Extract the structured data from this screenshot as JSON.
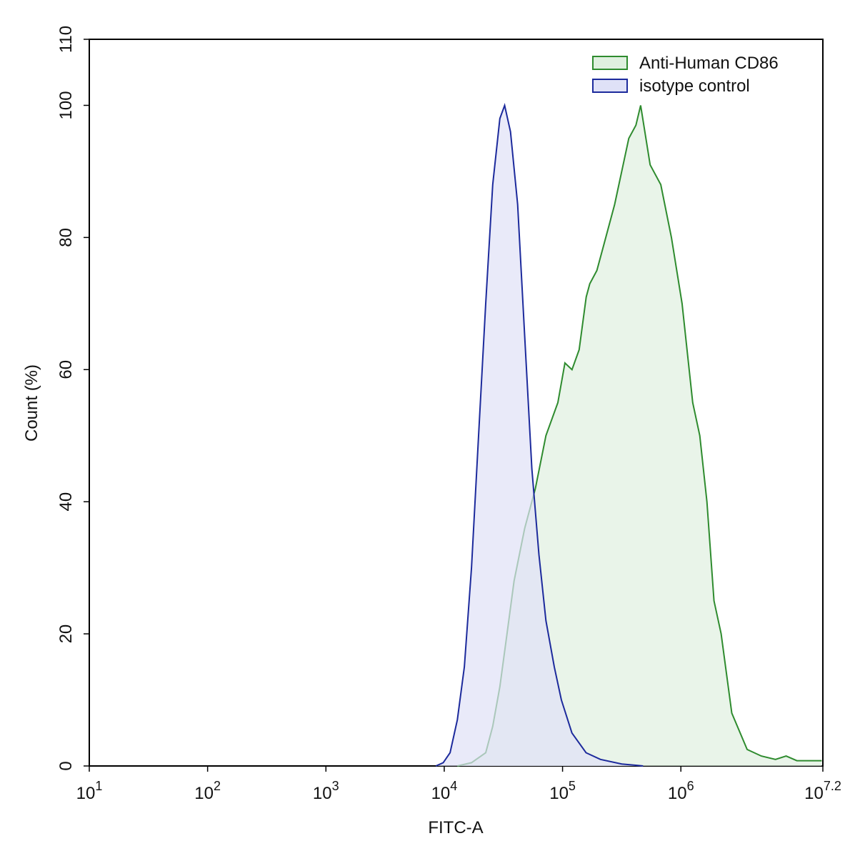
{
  "chart_data": {
    "type": "histogram-overlay",
    "x_label": "FITC-A",
    "y_label": "Count  (%)",
    "xscale": "log",
    "xlim": [
      10,
      15848932
    ],
    "ylim": [
      0,
      110
    ],
    "xticks": [
      {
        "value": 10,
        "label": "10^1"
      },
      {
        "value": 100,
        "label": "10^2"
      },
      {
        "value": 1000,
        "label": "10^3"
      },
      {
        "value": 10000,
        "label": "10^4"
      },
      {
        "value": 100000,
        "label": "10^5"
      },
      {
        "value": 1000000,
        "label": "10^6"
      },
      {
        "value": 15848932,
        "label": "10^7.2"
      }
    ],
    "yticks": [
      0,
      20,
      40,
      60,
      80,
      100,
      110
    ],
    "legend": "top-right",
    "series": [
      {
        "name": "Anti-Human CD86",
        "color": "#2e8b2e",
        "fill": "#dff0df",
        "x": [
          12900,
          17000,
          22400,
          25700,
          29500,
          33900,
          38900,
          47900,
          58900,
          72400,
          91200,
          104700,
          120200,
          138000,
          158500,
          169800,
          195000,
          223900,
          275400,
          316200,
          363100,
          416900,
          457100,
          549500,
          676100,
          831800,
          1023000,
          1259000,
          1445000,
          1660000,
          1905000,
          2188000,
          2692000,
          3631000,
          4786000,
          6310000,
          7762000,
          9550000,
          15490000
        ],
        "values": [
          0,
          0.5,
          2,
          6,
          12,
          20,
          28,
          36,
          42,
          50,
          55,
          61,
          60,
          63,
          71,
          73,
          75,
          79,
          85,
          90,
          95,
          97,
          100,
          91,
          88,
          80,
          70,
          55,
          50,
          40,
          25,
          20,
          8,
          2.5,
          1.5,
          1,
          1.5,
          0.8,
          0.8
        ]
      },
      {
        "name": "isotype control",
        "color": "#1c2a9c",
        "fill": "#dfe1f7",
        "x": [
          8500,
          9800,
          11200,
          12900,
          14800,
          17000,
          19500,
          22400,
          25700,
          29500,
          32400,
          36300,
          41700,
          47900,
          55000,
          63100,
          72400,
          85100,
          97700,
          120000,
          158000,
          209000,
          316000,
          479000
        ],
        "values": [
          0,
          0.5,
          2,
          7,
          15,
          30,
          50,
          70,
          88,
          98,
          100,
          96,
          85,
          65,
          45,
          32,
          22,
          15,
          10,
          5,
          2,
          1,
          0.3,
          0
        ]
      }
    ]
  }
}
